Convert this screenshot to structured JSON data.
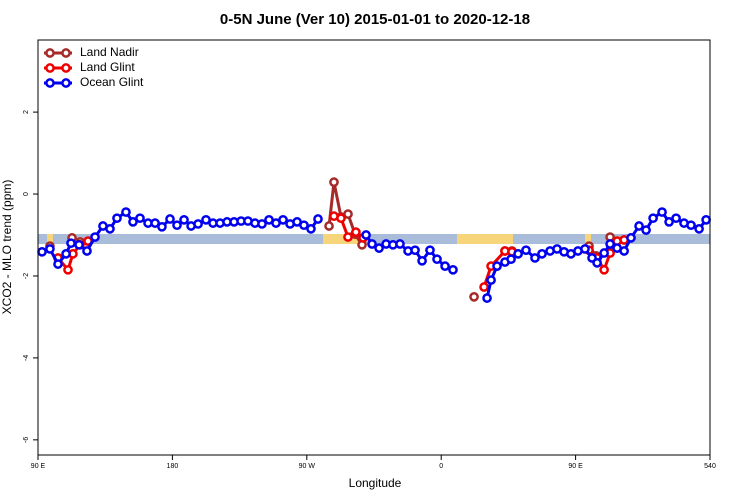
{
  "chart_data": {
    "type": "line",
    "title": "0-5N June (Ver 10)   2015-01-01 to 2020-12-18",
    "x_label": "Longitude",
    "y_label": "XCO2 - MLO trend (ppm)",
    "xlim": [
      90,
      540
    ],
    "ylim": [
      -6.37,
      3.76
    ],
    "xticks": [
      {
        "value": 90,
        "label": "90 E"
      },
      180,
      {
        "value": 270,
        "label": "90 W"
      },
      {
        "value": 360,
        "label": "0"
      },
      {
        "value": 450,
        "label": "90 E"
      },
      540
    ],
    "yticks": [
      2,
      0,
      -2,
      -4,
      -6
    ],
    "legend": "top-left",
    "series": [
      {
        "name": "Land Nadir",
        "color": "#a52a2a",
        "x": [
          98.0,
          null,
          112.8,
          118.2,
          null,
          284.9,
          288.2,
          292.9,
          297.6,
          302.3,
          307.0,
          null,
          382.0,
          null,
          402.7,
          407.4,
          null,
          459.0,
          463.7,
          null,
          473.1,
          482.5
        ],
        "values": [
          -1.27,
          null,
          -1.07,
          -1.17,
          null,
          -0.78,
          0.29,
          -0.56,
          -0.49,
          -0.98,
          -1.24,
          null,
          -2.51,
          null,
          -1.39,
          -1.39,
          null,
          -1.27,
          -1.51,
          null,
          -1.05,
          -1.12
        ]
      },
      {
        "name": "Land Glint",
        "color": "#ee0000",
        "x": [
          103.4,
          110.1,
          113.4,
          118.1,
          123.5,
          null,
          288.2,
          292.9,
          297.6,
          302.9,
          307.7,
          null,
          388.7,
          393.4,
          402.7,
          407.4,
          null,
          459.0,
          464.4,
          469.1,
          473.1,
          477.8,
          482.5
        ],
        "values": [
          -1.56,
          -1.85,
          -1.46,
          -1.24,
          -1.15,
          null,
          -0.54,
          -0.59,
          -1.05,
          -0.93,
          -1.07,
          null,
          -2.27,
          -1.76,
          -1.39,
          -1.41,
          null,
          -1.37,
          -1.56,
          -1.85,
          -1.44,
          -1.15,
          -1.12
        ]
      },
      {
        "name": "Ocean Glint",
        "color": "#0000ee",
        "x": [
          92.7,
          98.0,
          103.4,
          108.8,
          112.1,
          117.5,
          122.8,
          128.2,
          133.5,
          138.2,
          142.9,
          148.9,
          153.6,
          158.3,
          163.7,
          168.4,
          173.0,
          178.4,
          183.1,
          187.8,
          192.5,
          197.2,
          202.5,
          207.2,
          211.9,
          216.6,
          221.3,
          226.0,
          230.6,
          235.3,
          240.0,
          244.7,
          249.4,
          254.1,
          258.8,
          263.5,
          268.1,
          272.8,
          277.5,
          null,
          309.7,
          313.7,
          318.4,
          323.1,
          327.7,
          332.4,
          337.8,
          342.5,
          347.2,
          352.5,
          357.2,
          362.6,
          367.9,
          null,
          390.7,
          393.4,
          397.4,
          402.7,
          406.8,
          411.5,
          416.8,
          422.8,
          427.5,
          432.9,
          437.6,
          442.3,
          446.9,
          451.6,
          456.3,
          461.0,
          464.4,
          469.1,
          473.1,
          477.8,
          482.5,
          487.1,
          492.5,
          497.2,
          501.9,
          507.9,
          512.6,
          517.3,
          522.6,
          527.3,
          532.7,
          537.4
        ],
        "values": [
          -1.41,
          -1.34,
          -1.71,
          -1.46,
          -1.2,
          -1.24,
          -1.39,
          -1.05,
          -0.78,
          -0.85,
          -0.59,
          -0.44,
          -0.68,
          -0.59,
          -0.71,
          -0.71,
          -0.8,
          -0.61,
          -0.76,
          -0.63,
          -0.78,
          -0.73,
          -0.63,
          -0.71,
          -0.71,
          -0.68,
          -0.68,
          -0.66,
          -0.66,
          -0.71,
          -0.73,
          -0.63,
          -0.71,
          -0.63,
          -0.73,
          -0.68,
          -0.76,
          -0.85,
          -0.61,
          null,
          -1.0,
          -1.22,
          -1.32,
          -1.22,
          -1.24,
          -1.22,
          -1.39,
          -1.37,
          -1.63,
          -1.37,
          -1.59,
          -1.76,
          -1.85,
          null,
          -2.54,
          -2.1,
          -1.76,
          -1.66,
          -1.59,
          -1.46,
          -1.37,
          -1.56,
          -1.46,
          -1.39,
          -1.34,
          -1.41,
          -1.46,
          -1.39,
          -1.34,
          -1.56,
          -1.68,
          -1.44,
          -1.22,
          -1.32,
          -1.39,
          -1.07,
          -0.78,
          -0.88,
          -0.59,
          -0.44,
          -0.68,
          -0.59,
          -0.71,
          -0.76,
          -0.85,
          -0.63
        ]
      }
    ]
  }
}
